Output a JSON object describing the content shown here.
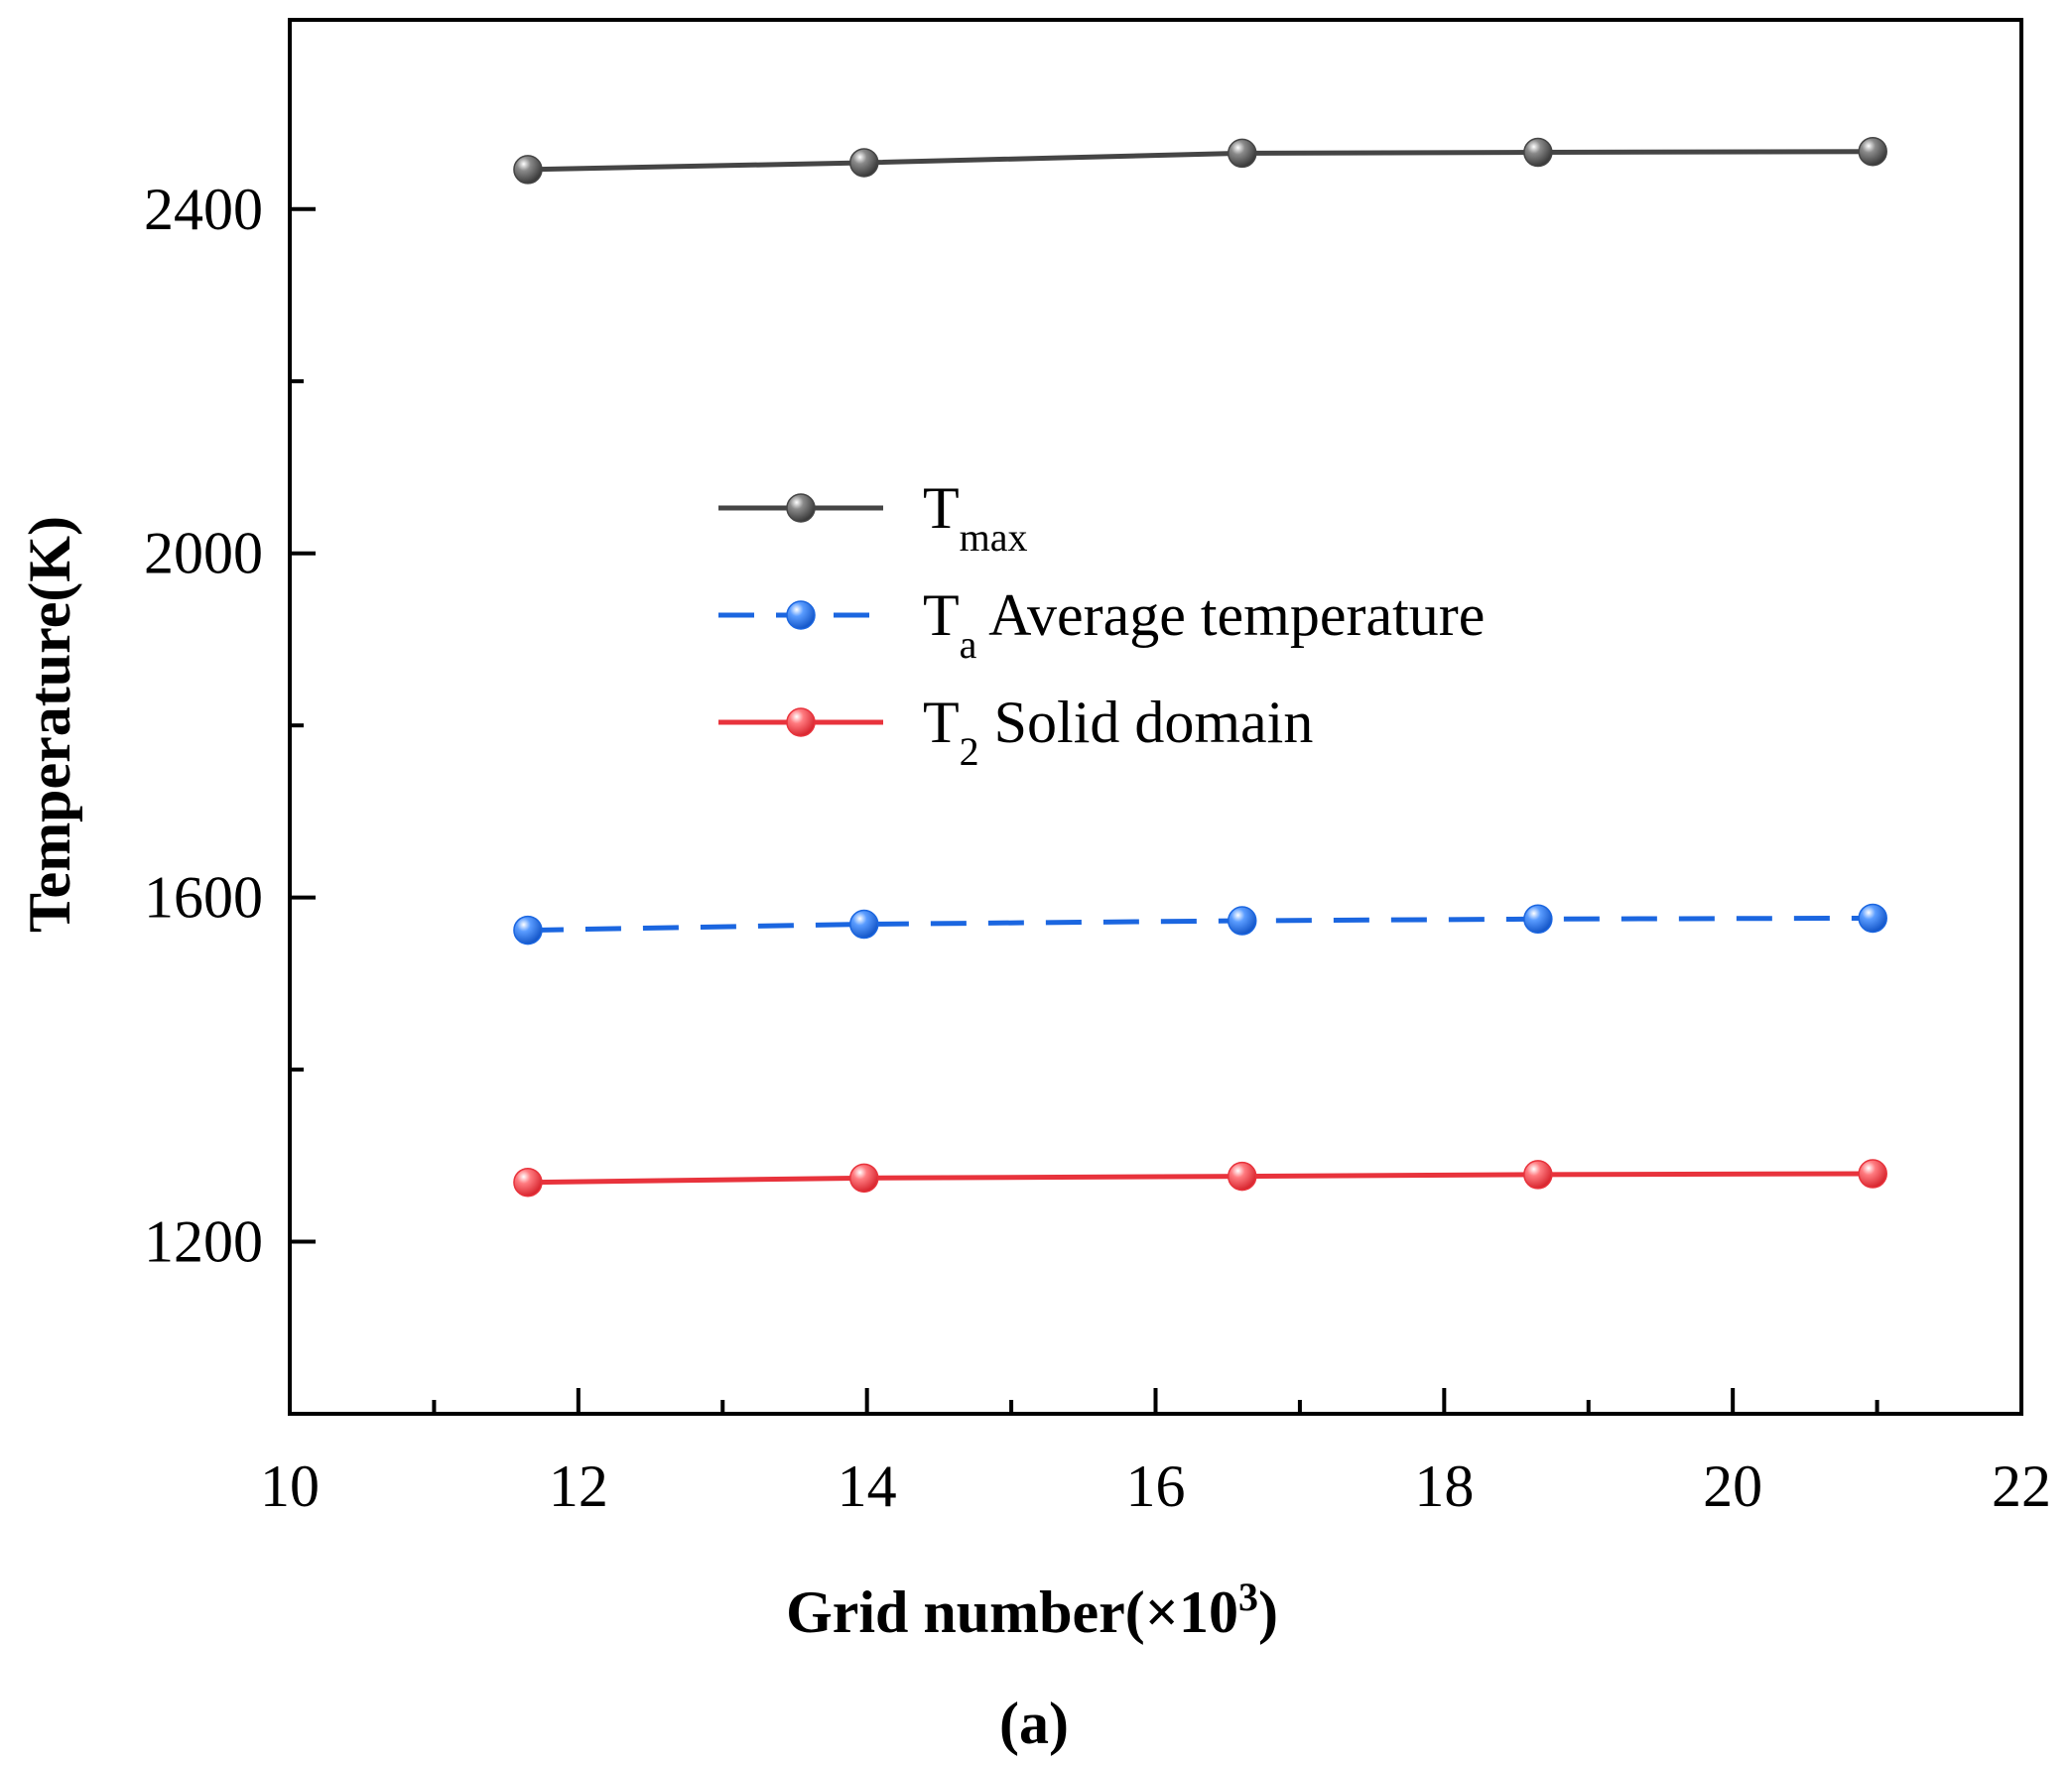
{
  "chart_data": {
    "type": "line",
    "title": "",
    "xlabel": "Grid number(×10",
    "xlabel_sup": "3",
    "xlabel_close": ")",
    "ylabel": "Temperature(K)",
    "xlim": [
      10,
      22
    ],
    "ylim": [
      1000,
      2620
    ],
    "xticks": [
      10,
      12,
      14,
      16,
      18,
      20,
      22
    ],
    "xticks_minor": [
      11,
      13,
      15,
      17,
      19,
      21
    ],
    "yticks": [
      1200,
      1600,
      2000,
      2400
    ],
    "yticks_minor": [
      1400,
      1800,
      2200
    ],
    "x": [
      11.65,
      13.98,
      16.6,
      18.65,
      20.97
    ],
    "series": [
      {
        "name": "T_max",
        "main": "T",
        "sub": "max",
        "rest": "",
        "color": "#454545",
        "dash": false,
        "values": [
          2446,
          2454,
          2465,
          2466,
          2467
        ]
      },
      {
        "name": "T_a Average temperature",
        "main": "T",
        "sub": "a",
        "rest": " Average temperature",
        "color": "#1b66e0",
        "dash": true,
        "values": [
          1562,
          1569,
          1573,
          1575,
          1576
        ]
      },
      {
        "name": "T_2 Solid domain",
        "main": "T",
        "sub": "2",
        "rest": " Solid domain",
        "color": "#e8333c",
        "dash": false,
        "values": [
          1269,
          1274,
          1276,
          1278,
          1279
        ]
      }
    ],
    "legend_position": "center-left",
    "grid": false
  },
  "panel_label": "(a)"
}
